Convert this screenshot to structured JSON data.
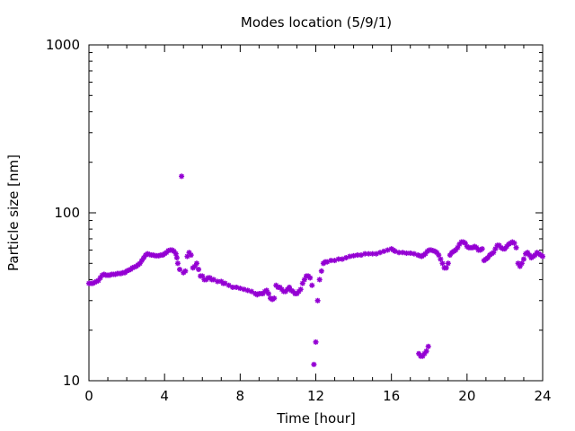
{
  "chart_data": {
    "type": "scatter",
    "title": "Modes location (5/9/1)",
    "xlabel": "Time [hour]",
    "ylabel": "Particle size [nm]",
    "xlim": [
      0,
      24
    ],
    "ylim": [
      10,
      1000
    ],
    "yscale": "log",
    "x_ticks": [
      0,
      4,
      8,
      12,
      16,
      20,
      24
    ],
    "x_tick_labels": [
      "0",
      "4",
      "8",
      "12",
      "16",
      "20",
      "24"
    ],
    "y_ticks": [
      10,
      100,
      1000
    ],
    "y_tick_labels": [
      "10",
      "100",
      "1000"
    ],
    "grid": false,
    "legend": "none",
    "marker_color": "#9400d3",
    "points": [
      [
        0.0,
        38
      ],
      [
        0.1,
        38
      ],
      [
        0.2,
        38
      ],
      [
        0.3,
        38.5
      ],
      [
        0.4,
        39
      ],
      [
        0.5,
        39.5
      ],
      [
        0.6,
        41
      ],
      [
        0.7,
        42.5
      ],
      [
        0.8,
        43
      ],
      [
        0.9,
        42.5
      ],
      [
        1.0,
        42.5
      ],
      [
        1.1,
        42.5
      ],
      [
        1.2,
        43
      ],
      [
        1.3,
        43
      ],
      [
        1.4,
        43
      ],
      [
        1.5,
        43.5
      ],
      [
        1.6,
        43.5
      ],
      [
        1.7,
        43.5
      ],
      [
        1.8,
        44
      ],
      [
        1.9,
        44
      ],
      [
        2.0,
        45
      ],
      [
        2.1,
        45.5
      ],
      [
        2.2,
        46
      ],
      [
        2.3,
        47
      ],
      [
        2.4,
        47.5
      ],
      [
        2.5,
        48
      ],
      [
        2.6,
        49
      ],
      [
        2.7,
        50
      ],
      [
        2.8,
        52
      ],
      [
        2.9,
        54
      ],
      [
        3.0,
        56
      ],
      [
        3.1,
        57
      ],
      [
        3.2,
        56.5
      ],
      [
        3.3,
        56
      ],
      [
        3.4,
        56
      ],
      [
        3.5,
        55.5
      ],
      [
        3.6,
        55.5
      ],
      [
        3.7,
        55.5
      ],
      [
        3.8,
        56
      ],
      [
        3.9,
        56
      ],
      [
        4.0,
        57
      ],
      [
        4.1,
        58
      ],
      [
        4.2,
        59.5
      ],
      [
        4.3,
        60
      ],
      [
        4.4,
        60
      ],
      [
        4.5,
        59
      ],
      [
        4.6,
        57
      ],
      [
        4.65,
        54
      ],
      [
        4.7,
        50
      ],
      [
        4.8,
        46
      ],
      [
        4.9,
        165
      ],
      [
        5.0,
        44
      ],
      [
        5.1,
        45
      ],
      [
        5.2,
        55
      ],
      [
        5.3,
        58
      ],
      [
        5.4,
        56
      ],
      [
        5.5,
        47
      ],
      [
        5.6,
        48
      ],
      [
        5.7,
        50
      ],
      [
        5.8,
        46
      ],
      [
        5.9,
        42
      ],
      [
        6.0,
        42
      ],
      [
        6.1,
        40
      ],
      [
        6.2,
        40
      ],
      [
        6.3,
        41
      ],
      [
        6.4,
        41
      ],
      [
        6.5,
        40
      ],
      [
        6.6,
        40
      ],
      [
        6.8,
        39
      ],
      [
        7.0,
        39
      ],
      [
        7.1,
        38
      ],
      [
        7.2,
        38
      ],
      [
        7.4,
        37
      ],
      [
        7.6,
        36
      ],
      [
        7.8,
        36
      ],
      [
        8.0,
        35.5
      ],
      [
        8.2,
        35
      ],
      [
        8.4,
        34.5
      ],
      [
        8.6,
        34
      ],
      [
        8.8,
        33
      ],
      [
        8.9,
        32.5
      ],
      [
        9.0,
        33
      ],
      [
        9.1,
        33
      ],
      [
        9.2,
        33
      ],
      [
        9.3,
        34
      ],
      [
        9.4,
        34.5
      ],
      [
        9.5,
        33
      ],
      [
        9.6,
        31
      ],
      [
        9.7,
        30.5
      ],
      [
        9.8,
        31
      ],
      [
        9.9,
        37
      ],
      [
        10.0,
        36
      ],
      [
        10.1,
        36
      ],
      [
        10.2,
        35
      ],
      [
        10.3,
        34
      ],
      [
        10.4,
        34
      ],
      [
        10.5,
        35
      ],
      [
        10.6,
        36
      ],
      [
        10.7,
        34.5
      ],
      [
        10.8,
        34
      ],
      [
        10.9,
        33
      ],
      [
        11.0,
        33
      ],
      [
        11.1,
        34
      ],
      [
        11.2,
        35
      ],
      [
        11.3,
        38
      ],
      [
        11.4,
        40
      ],
      [
        11.5,
        42
      ],
      [
        11.6,
        42
      ],
      [
        11.7,
        41
      ],
      [
        11.8,
        37
      ],
      [
        11.9,
        12.5
      ],
      [
        12.0,
        17
      ],
      [
        12.1,
        30
      ],
      [
        12.2,
        40
      ],
      [
        12.3,
        45
      ],
      [
        12.4,
        50
      ],
      [
        12.5,
        51
      ],
      [
        12.6,
        51
      ],
      [
        12.8,
        52
      ],
      [
        13.0,
        52
      ],
      [
        13.2,
        53
      ],
      [
        13.4,
        53
      ],
      [
        13.6,
        54
      ],
      [
        13.8,
        55
      ],
      [
        14.0,
        55.5
      ],
      [
        14.2,
        56
      ],
      [
        14.4,
        56
      ],
      [
        14.6,
        57
      ],
      [
        14.8,
        57
      ],
      [
        15.0,
        57
      ],
      [
        15.2,
        57
      ],
      [
        15.4,
        58
      ],
      [
        15.6,
        59
      ],
      [
        15.8,
        60
      ],
      [
        16.0,
        61
      ],
      [
        16.1,
        60
      ],
      [
        16.2,
        59
      ],
      [
        16.4,
        58
      ],
      [
        16.6,
        58
      ],
      [
        16.8,
        57.5
      ],
      [
        17.0,
        57.5
      ],
      [
        17.2,
        57
      ],
      [
        17.4,
        56
      ],
      [
        17.5,
        55.5
      ],
      [
        17.6,
        55
      ],
      [
        17.7,
        56
      ],
      [
        17.8,
        57
      ],
      [
        17.9,
        59
      ],
      [
        18.0,
        60
      ],
      [
        18.1,
        60
      ],
      [
        18.2,
        59.5
      ],
      [
        18.3,
        59
      ],
      [
        18.4,
        58
      ],
      [
        18.5,
        56
      ],
      [
        18.6,
        53
      ],
      [
        18.7,
        50
      ],
      [
        18.8,
        47
      ],
      [
        18.9,
        47
      ],
      [
        19.0,
        50
      ],
      [
        19.1,
        56
      ],
      [
        19.2,
        58
      ],
      [
        19.3,
        59
      ],
      [
        19.4,
        60
      ],
      [
        19.5,
        62
      ],
      [
        19.6,
        65
      ],
      [
        19.7,
        67
      ],
      [
        19.8,
        67
      ],
      [
        19.9,
        66
      ],
      [
        20.0,
        63
      ],
      [
        20.1,
        62
      ],
      [
        20.2,
        62
      ],
      [
        20.3,
        62
      ],
      [
        20.4,
        63
      ],
      [
        20.5,
        62
      ],
      [
        20.6,
        60
      ],
      [
        20.7,
        60
      ],
      [
        20.8,
        61
      ],
      [
        20.9,
        52
      ],
      [
        21.0,
        53
      ],
      [
        21.1,
        54
      ],
      [
        21.2,
        56
      ],
      [
        21.3,
        57
      ],
      [
        21.4,
        58
      ],
      [
        21.5,
        61
      ],
      [
        21.6,
        64
      ],
      [
        21.7,
        64
      ],
      [
        21.8,
        62
      ],
      [
        21.9,
        61
      ],
      [
        22.0,
        61
      ],
      [
        22.1,
        63
      ],
      [
        22.2,
        65
      ],
      [
        22.3,
        66
      ],
      [
        22.4,
        67
      ],
      [
        22.5,
        66
      ],
      [
        22.6,
        62
      ],
      [
        22.7,
        50
      ],
      [
        22.8,
        48
      ],
      [
        22.9,
        50
      ],
      [
        23.0,
        53
      ],
      [
        23.1,
        57
      ],
      [
        23.2,
        58
      ],
      [
        23.3,
        56
      ],
      [
        23.4,
        54
      ],
      [
        23.5,
        55
      ],
      [
        23.6,
        56
      ],
      [
        23.7,
        58
      ],
      [
        23.8,
        57
      ],
      [
        23.9,
        56
      ],
      [
        24.0,
        55
      ],
      [
        17.45,
        14.5
      ],
      [
        17.55,
        14
      ],
      [
        17.65,
        14
      ],
      [
        17.75,
        14.5
      ],
      [
        17.85,
        15
      ],
      [
        17.95,
        16
      ]
    ]
  }
}
